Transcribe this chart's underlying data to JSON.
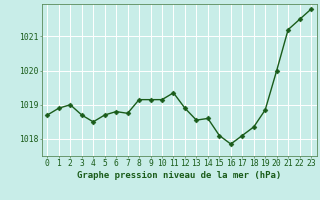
{
  "x": [
    0,
    1,
    2,
    3,
    4,
    5,
    6,
    7,
    8,
    9,
    10,
    11,
    12,
    13,
    14,
    15,
    16,
    17,
    18,
    19,
    20,
    21,
    22,
    23
  ],
  "y": [
    1018.7,
    1018.9,
    1019.0,
    1018.7,
    1018.5,
    1018.7,
    1018.8,
    1018.75,
    1019.15,
    1019.15,
    1019.15,
    1019.35,
    1018.9,
    1018.55,
    1018.6,
    1018.1,
    1017.85,
    1018.1,
    1018.35,
    1018.85,
    1020.0,
    1021.2,
    1021.5,
    1021.8
  ],
  "line_color": "#1a5c1a",
  "marker_color": "#1a5c1a",
  "bg_color": "#c8ede8",
  "grid_color": "#ffffff",
  "ylabel_ticks": [
    1018,
    1019,
    1020,
    1021
  ],
  "xlabel_ticks": [
    0,
    1,
    2,
    3,
    4,
    5,
    6,
    7,
    8,
    9,
    10,
    11,
    12,
    13,
    14,
    15,
    16,
    17,
    18,
    19,
    20,
    21,
    22,
    23
  ],
  "xlabel": "Graphe pression niveau de la mer (hPa)",
  "ylim": [
    1017.5,
    1021.95
  ],
  "xlim": [
    -0.5,
    23.5
  ],
  "title_color": "#1a5c1a",
  "xlabel_fontsize": 6.5,
  "tick_fontsize": 5.8,
  "marker_size": 2.5,
  "line_width": 1.0,
  "spine_color": "#5a8a5a"
}
